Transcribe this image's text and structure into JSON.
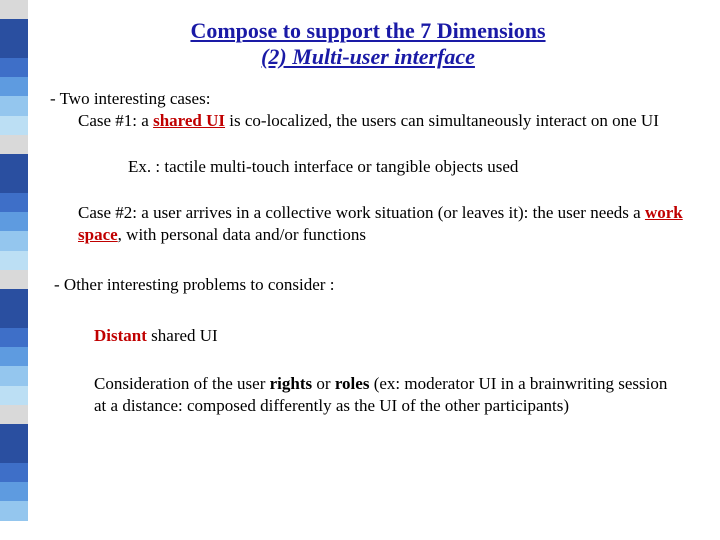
{
  "sidebar_colors": [
    "#d9d9d9",
    "#2a4fa0",
    "#2a4fa0",
    "#3e6fc8",
    "#5e9be0",
    "#94c6ee",
    "#bcdff4",
    "#d9d9d9",
    "#2a4fa0",
    "#2a4fa0",
    "#3e6fc8",
    "#5e9be0",
    "#94c6ee",
    "#bcdff4",
    "#d9d9d9",
    "#2a4fa0",
    "#2a4fa0",
    "#3e6fc8",
    "#5e9be0",
    "#94c6ee",
    "#bcdff4",
    "#d9d9d9",
    "#2a4fa0",
    "#2a4fa0",
    "#3e6fc8",
    "#5e9be0",
    "#94c6ee",
    "#ffffff"
  ],
  "title": {
    "line1": "Compose to support the 7 Dimensions",
    "line2": "(2) Multi-user interface",
    "color": "#1a1aa6",
    "fontsize": 22
  },
  "body": {
    "fontsize": 17,
    "text_color": "#000000",
    "accent_color": "#c00000",
    "intro": "- Two interesting cases:",
    "case1_prefix": "Case #1: a ",
    "case1_highlight": "shared UI",
    "case1_rest": " is co-localized, the users can simultaneously interact on one UI",
    "example": "Ex. : tactile multi-touch interface or tangible objects used",
    "case2_prefix": "Case #2: a user arrives in a collective work situation (or leaves it): the user needs a ",
    "case2_highlight": "work space",
    "case2_rest": ", with personal data and/or functions",
    "other": "- Other interesting problems to consider :",
    "distant_highlight": "Distant",
    "distant_rest": " shared UI",
    "rights_pre": "Consideration of the user ",
    "rights_w1": "rights",
    "rights_mid": " or ",
    "rights_w2": "roles",
    "rights_rest": " (ex: moderator UI in a brainwriting session at a distance: composed differently as the UI of the other participants)"
  }
}
